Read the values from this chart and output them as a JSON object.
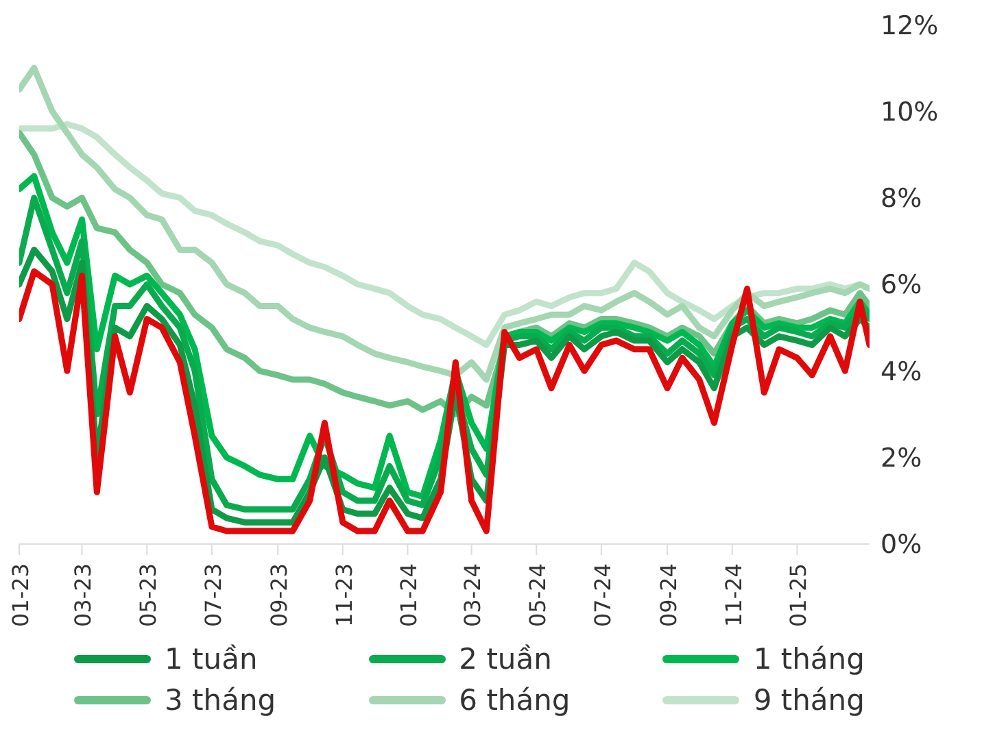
{
  "chart_data": {
    "type": "line",
    "x": [
      "2023-01-01",
      "2023-01-15",
      "2023-02-01",
      "2023-02-15",
      "2023-03-01",
      "2023-03-15",
      "2023-04-01",
      "2023-04-15",
      "2023-05-01",
      "2023-05-15",
      "2023-06-01",
      "2023-06-15",
      "2023-07-01",
      "2023-07-15",
      "2023-08-01",
      "2023-08-15",
      "2023-09-01",
      "2023-09-15",
      "2023-10-01",
      "2023-10-15",
      "2023-11-01",
      "2023-11-15",
      "2023-12-01",
      "2023-12-15",
      "2024-01-01",
      "2024-01-15",
      "2024-02-01",
      "2024-02-15",
      "2024-03-01",
      "2024-03-15",
      "2024-04-01",
      "2024-04-15",
      "2024-05-01",
      "2024-05-15",
      "2024-06-01",
      "2024-06-15",
      "2024-07-01",
      "2024-07-15",
      "2024-08-01",
      "2024-08-15",
      "2024-09-01",
      "2024-09-15",
      "2024-10-01",
      "2024-10-15",
      "2024-11-01",
      "2024-11-15",
      "2024-12-01",
      "2024-12-15",
      "2025-01-01",
      "2025-01-15",
      "2025-02-01",
      "2025-02-15",
      "2025-03-01",
      "2025-03-10"
    ],
    "series": [
      {
        "name": "1 tuần",
        "color": "#0f9a48",
        "values": [
          6.0,
          6.8,
          6.3,
          5.2,
          6.5,
          2.0,
          5.0,
          4.8,
          5.5,
          5.2,
          4.6,
          3.2,
          0.8,
          0.6,
          0.5,
          0.5,
          0.5,
          0.5,
          1.2,
          2.0,
          0.8,
          0.7,
          0.7,
          1.3,
          0.7,
          0.6,
          1.5,
          3.5,
          1.5,
          1.0,
          4.6,
          4.6,
          4.7,
          4.3,
          4.8,
          4.5,
          4.8,
          4.9,
          4.7,
          4.7,
          4.2,
          4.5,
          4.2,
          3.6,
          4.8,
          5.0,
          4.6,
          4.8,
          4.7,
          4.6,
          5.0,
          4.8,
          5.2,
          5.0
        ]
      },
      {
        "name": "2 tuần",
        "color": "#0aab4e",
        "values": [
          6.5,
          8.0,
          6.8,
          5.8,
          7.0,
          3.0,
          5.5,
          5.5,
          6.0,
          5.5,
          5.0,
          4.0,
          1.5,
          0.9,
          0.8,
          0.8,
          0.8,
          0.8,
          1.5,
          2.5,
          1.2,
          1.0,
          1.0,
          1.8,
          1.0,
          0.9,
          2.0,
          3.6,
          2.2,
          1.6,
          4.7,
          4.8,
          4.8,
          4.5,
          4.9,
          4.7,
          5.0,
          5.0,
          4.8,
          4.8,
          4.4,
          4.7,
          4.4,
          3.9,
          5.0,
          5.2,
          4.8,
          5.0,
          4.9,
          4.8,
          5.1,
          5.0,
          5.4,
          5.2
        ]
      },
      {
        "name": "1 tháng",
        "color": "#00b850",
        "values": [
          8.2,
          8.5,
          7.2,
          6.5,
          7.5,
          4.5,
          6.2,
          6.0,
          6.2,
          5.8,
          5.3,
          4.5,
          2.5,
          2.0,
          1.8,
          1.6,
          1.5,
          1.5,
          2.5,
          1.8,
          1.6,
          1.4,
          1.3,
          2.5,
          1.2,
          1.1,
          2.4,
          4.0,
          2.8,
          2.2,
          4.8,
          4.9,
          4.9,
          4.7,
          5.0,
          4.9,
          5.1,
          5.1,
          5.0,
          4.9,
          4.7,
          4.9,
          4.6,
          4.1,
          5.1,
          5.4,
          5.0,
          5.1,
          5.0,
          5.0,
          5.2,
          5.1,
          5.6,
          5.3
        ]
      },
      {
        "name": "3 tháng",
        "color": "#6cc287",
        "values": [
          9.5,
          9.0,
          8.0,
          7.8,
          8.0,
          7.3,
          7.2,
          6.8,
          6.5,
          6.0,
          5.8,
          5.3,
          5.0,
          4.5,
          4.3,
          4.0,
          3.9,
          3.8,
          3.8,
          3.7,
          3.5,
          3.4,
          3.3,
          3.2,
          3.3,
          3.1,
          3.3,
          3.0,
          3.4,
          3.2,
          4.6,
          4.9,
          5.0,
          4.8,
          5.1,
          5.0,
          5.2,
          5.2,
          5.1,
          5.0,
          4.8,
          5.0,
          4.8,
          4.4,
          5.1,
          5.5,
          5.1,
          5.2,
          5.1,
          5.2,
          5.4,
          5.3,
          5.8,
          5.5
        ]
      },
      {
        "name": "6 tháng",
        "color": "#a3d6b1",
        "values": [
          10.5,
          11.0,
          10.0,
          9.5,
          9.0,
          8.7,
          8.2,
          8.0,
          7.6,
          7.5,
          6.8,
          6.8,
          6.5,
          6.0,
          5.8,
          5.5,
          5.5,
          5.2,
          5.0,
          4.9,
          4.8,
          4.6,
          4.4,
          4.3,
          4.2,
          4.1,
          4.0,
          3.9,
          4.2,
          3.8,
          5.0,
          5.1,
          5.2,
          5.3,
          5.3,
          5.5,
          5.4,
          5.6,
          5.8,
          5.6,
          5.3,
          5.5,
          5.0,
          4.8,
          5.4,
          5.8,
          5.5,
          5.6,
          5.7,
          5.8,
          5.9,
          5.8,
          6.0,
          5.9
        ]
      },
      {
        "name": "9 tháng",
        "color": "#c2e3cb",
        "values": [
          9.6,
          9.6,
          9.6,
          9.7,
          9.6,
          9.4,
          9.0,
          8.7,
          8.4,
          8.1,
          8.0,
          7.7,
          7.6,
          7.4,
          7.2,
          7.0,
          6.9,
          6.7,
          6.5,
          6.4,
          6.2,
          6.0,
          5.9,
          5.8,
          5.5,
          5.3,
          5.2,
          5.0,
          4.8,
          4.6,
          5.3,
          5.4,
          5.6,
          5.5,
          5.7,
          5.8,
          5.8,
          5.9,
          6.5,
          6.3,
          5.8,
          5.6,
          5.4,
          5.2,
          5.5,
          5.7,
          5.8,
          5.8,
          5.9,
          5.9,
          6.0,
          5.9,
          6.0,
          5.9
        ]
      },
      {
        "color": "#e00a0a",
        "values": [
          5.2,
          6.3,
          6.0,
          4.0,
          6.2,
          1.2,
          4.8,
          3.5,
          5.2,
          5.0,
          4.2,
          2.5,
          0.4,
          0.3,
          0.3,
          0.3,
          0.3,
          0.3,
          1.0,
          2.8,
          0.5,
          0.3,
          0.3,
          1.0,
          0.3,
          0.3,
          1.2,
          4.2,
          1.0,
          0.3,
          4.9,
          4.3,
          4.5,
          3.6,
          4.6,
          4.0,
          4.6,
          4.7,
          4.5,
          4.5,
          3.6,
          4.3,
          3.8,
          2.8,
          4.6,
          5.9,
          3.5,
          4.5,
          4.3,
          3.9,
          4.8,
          4.0,
          5.6,
          4.6
        ]
      }
    ],
    "xlim": [
      "2023-01-01",
      "2025-03-10"
    ],
    "xticks": [
      {
        "value": "2023-01-01",
        "label": "01-23"
      },
      {
        "value": "2023-03-01",
        "label": "03-23"
      },
      {
        "value": "2023-05-01",
        "label": "05-23"
      },
      {
        "value": "2023-07-01",
        "label": "07-23"
      },
      {
        "value": "2023-09-01",
        "label": "09-23"
      },
      {
        "value": "2023-11-01",
        "label": "11-23"
      },
      {
        "value": "2024-01-01",
        "label": "01-24"
      },
      {
        "value": "2024-03-01",
        "label": "03-24"
      },
      {
        "value": "2024-05-01",
        "label": "05-24"
      },
      {
        "value": "2024-07-01",
        "label": "07-24"
      },
      {
        "value": "2024-09-01",
        "label": "09-24"
      },
      {
        "value": "2024-11-01",
        "label": "11-24"
      },
      {
        "value": "2025-01-01",
        "label": "01-25"
      }
    ],
    "ylim": [
      0,
      12
    ],
    "yticks": [
      {
        "value": 0,
        "label": "0%"
      },
      {
        "value": 2,
        "label": "2%"
      },
      {
        "value": 4,
        "label": "4%"
      },
      {
        "value": 6,
        "label": "6%"
      },
      {
        "value": 8,
        "label": "8%"
      },
      {
        "value": 10,
        "label": "10%"
      },
      {
        "value": 12,
        "label": "12%"
      }
    ],
    "grid": false,
    "legend": "bottom",
    "marker": "none",
    "line_style": "solid"
  }
}
